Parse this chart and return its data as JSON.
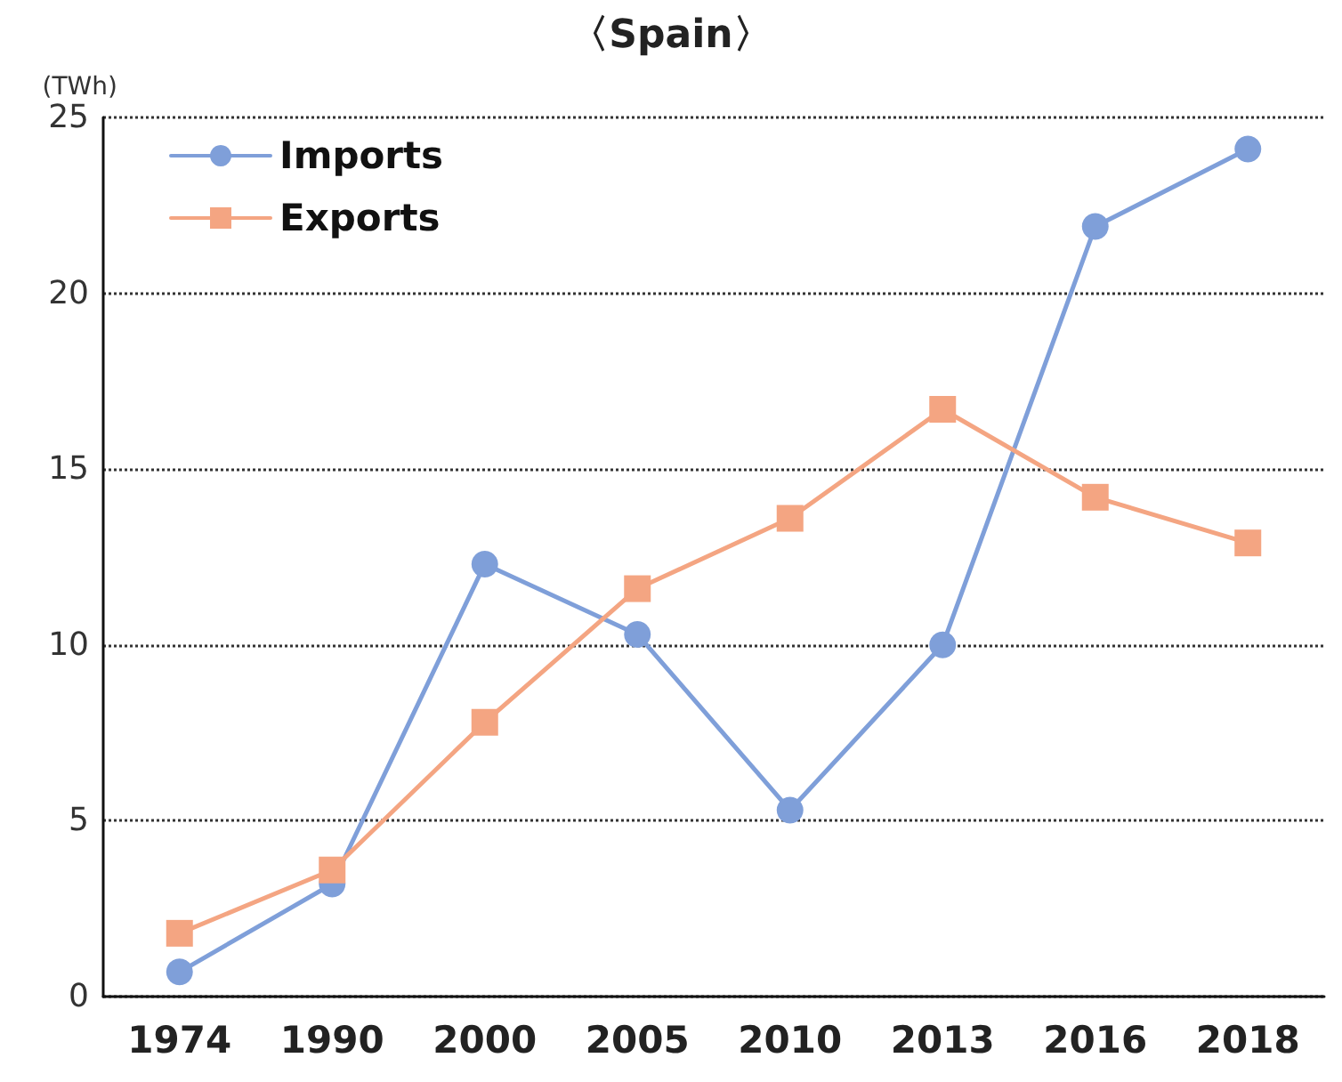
{
  "chart_data": {
    "type": "line",
    "title": "〈Spain〉",
    "ylabel": "(TWh)",
    "categories": [
      "1974",
      "1990",
      "2000",
      "2005",
      "2010",
      "2013",
      "2016",
      "2018"
    ],
    "series": [
      {
        "name": "Imports",
        "color": "#7f9fd9",
        "marker": "circle",
        "values": [
          0.7,
          3.2,
          12.3,
          10.3,
          5.3,
          10.0,
          21.9,
          24.1
        ]
      },
      {
        "name": "Exports",
        "color": "#f4a582",
        "marker": "square",
        "values": [
          1.8,
          3.6,
          7.8,
          11.6,
          13.6,
          16.7,
          14.2,
          12.9
        ]
      }
    ],
    "ylim": [
      0,
      25
    ],
    "yticks": [
      0,
      5,
      10,
      15,
      20,
      25
    ],
    "grid": "y",
    "legend": "top left",
    "line_style": "solid"
  }
}
